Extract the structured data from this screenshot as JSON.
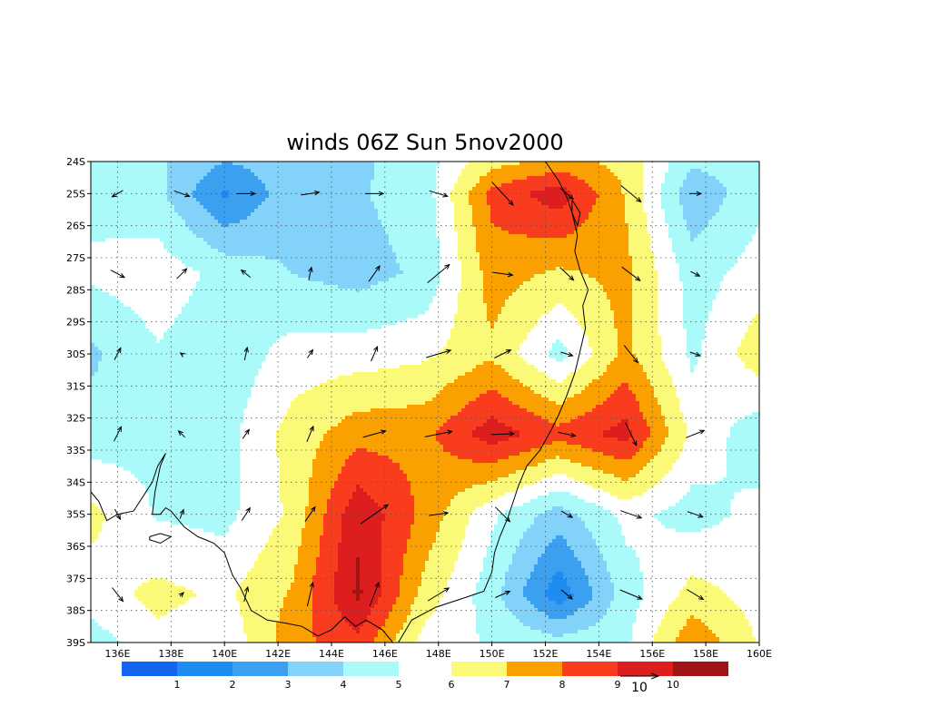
{
  "figure": {
    "title": "winds 06Z Sun 5nov2000",
    "vector_reference_label": "10"
  },
  "chart_data": {
    "type": "heatmap",
    "title": "winds 06Z Sun 5nov2000",
    "variable": "wind speed (shaded) with wind vectors",
    "x_range": [
      135,
      160
    ],
    "y_range": [
      -39,
      -24
    ],
    "grid": true,
    "x_ticks": [
      {
        "value": 136,
        "label": "136E"
      },
      {
        "value": 138,
        "label": "138E"
      },
      {
        "value": 140,
        "label": "140E"
      },
      {
        "value": 142,
        "label": "142E"
      },
      {
        "value": 144,
        "label": "144E"
      },
      {
        "value": 146,
        "label": "146E"
      },
      {
        "value": 148,
        "label": "148E"
      },
      {
        "value": 150,
        "label": "150E"
      },
      {
        "value": 152,
        "label": "152E"
      },
      {
        "value": 154,
        "label": "154E"
      },
      {
        "value": 156,
        "label": "156E"
      },
      {
        "value": 158,
        "label": "158E"
      },
      {
        "value": 160,
        "label": "160E"
      }
    ],
    "y_ticks": [
      {
        "value": -24,
        "label": "24S"
      },
      {
        "value": -25,
        "label": "25S"
      },
      {
        "value": -26,
        "label": "26S"
      },
      {
        "value": -27,
        "label": "27S"
      },
      {
        "value": -28,
        "label": "28S"
      },
      {
        "value": -29,
        "label": "29S"
      },
      {
        "value": -30,
        "label": "30S"
      },
      {
        "value": -31,
        "label": "31S"
      },
      {
        "value": -32,
        "label": "32S"
      },
      {
        "value": -33,
        "label": "33S"
      },
      {
        "value": -34,
        "label": "34S"
      },
      {
        "value": -35,
        "label": "35S"
      },
      {
        "value": -36,
        "label": "36S"
      },
      {
        "value": -37,
        "label": "37S"
      },
      {
        "value": -38,
        "label": "38S"
      },
      {
        "value": -39,
        "label": "39S"
      }
    ],
    "colorbar": {
      "levels": [
        1,
        2,
        3,
        4,
        5,
        6,
        7,
        8,
        9,
        10
      ],
      "labels": [
        "1",
        "2",
        "3",
        "4",
        "5",
        "6",
        "7",
        "8",
        "9",
        "10"
      ],
      "colors": [
        "#1464f0",
        "#1e8cf0",
        "#3ca0f0",
        "#82d2fa",
        "#aafafa",
        "#ffffff",
        "#fafa78",
        "#faa000",
        "#fa3c1e",
        "#dc1e1e",
        "#a01414"
      ]
    },
    "speed_grid": {
      "lons": [
        135,
        137.5,
        140,
        142.5,
        145,
        147.5,
        150,
        152.5,
        155,
        157.5,
        160
      ],
      "lats": [
        -24,
        -25,
        -27.5,
        -30,
        -32.5,
        -35,
        -37.5,
        -39
      ],
      "values": [
        [
          4.6,
          4.2,
          3.0,
          3.5,
          3.8,
          4.6,
          6.6,
          7.3,
          6.7,
          4.2,
          4.6
        ],
        [
          4.7,
          4.3,
          1.8,
          3.6,
          3.9,
          4.5,
          8.3,
          9.6,
          6.9,
          3.2,
          4.7
        ],
        [
          5.2,
          5.6,
          4.7,
          4.0,
          3.6,
          4.2,
          7.5,
          6.8,
          7.3,
          4.5,
          5.5
        ],
        [
          3.8,
          4.9,
          4.3,
          5.4,
          5.5,
          5.8,
          6.8,
          4.6,
          7.3,
          4.8,
          6.6
        ],
        [
          4.4,
          4.7,
          4.6,
          6.4,
          7.6,
          7.7,
          9.6,
          8.4,
          9.4,
          5.7,
          4.4
        ],
        [
          6.3,
          4.9,
          4.7,
          6.2,
          9.8,
          7.7,
          5.2,
          3.5,
          5.3,
          4.6,
          5.3
        ],
        [
          5.5,
          6.3,
          5.8,
          7.1,
          10.2,
          6.6,
          4.4,
          1.3,
          4.5,
          6.4,
          5.6
        ],
        [
          4.5,
          5.7,
          5.2,
          7.6,
          8.7,
          5.5,
          4.9,
          4.4,
          4.8,
          7.8,
          5.9
        ]
      ]
    },
    "wind_vectors": {
      "lons": [
        136,
        138.4,
        140.8,
        143.2,
        145.6,
        148,
        150.4,
        152.8,
        155.2,
        157.6
      ],
      "lats": [
        -25,
        -27.5,
        -30,
        -32.5,
        -35,
        -37.5
      ],
      "u": [
        [
          -1.2,
          1.7,
          2.0,
          2.0,
          2.0,
          2.0,
          2.3,
          1.4,
          2.2,
          1.3
        ],
        [
          1.5,
          1.1,
          -1.0,
          0.3,
          1.2,
          2.4,
          2.2,
          1.5,
          2.0,
          1.0
        ],
        [
          0.7,
          -0.3,
          0.3,
          0.6,
          0.7,
          2.7,
          1.8,
          1.3,
          1.5,
          1.1
        ],
        [
          0.8,
          -0.7,
          0.7,
          0.7,
          2.5,
          3.0,
          2.5,
          1.9,
          1.2,
          2.0
        ],
        [
          0.6,
          0.4,
          0.9,
          1.1,
          3.0,
          2.1,
          1.6,
          1.2,
          2.3,
          1.7
        ],
        [
          1.2,
          0.4,
          0.4,
          0.6,
          1.0,
          2.3,
          1.6,
          1.2,
          2.4,
          1.8
        ]
      ],
      "v": [
        [
          -0.7,
          -0.6,
          0.0,
          0.3,
          0.0,
          -0.6,
          -2.5,
          -1.2,
          -1.8,
          0.0
        ],
        [
          -0.8,
          1.1,
          0.8,
          1.4,
          1.7,
          2.0,
          -0.3,
          -1.4,
          -1.5,
          -0.5
        ],
        [
          1.3,
          0.2,
          1.4,
          0.9,
          1.6,
          0.8,
          0.9,
          -0.4,
          -1.9,
          -0.4
        ],
        [
          1.6,
          0.7,
          1.0,
          1.7,
          0.7,
          0.6,
          0.1,
          -0.4,
          -2.5,
          0.8
        ],
        [
          -1.1,
          1.0,
          1.4,
          1.6,
          2.1,
          0.3,
          -1.6,
          -0.7,
          -0.8,
          -0.6
        ],
        [
          -1.5,
          0.4,
          1.6,
          2.6,
          2.6,
          1.4,
          0.7,
          -1.0,
          -1.0,
          -1.1
        ]
      ]
    },
    "coastline": [
      [
        135.0,
        -34.3
      ],
      [
        135.3,
        -34.6
      ],
      [
        135.6,
        -35.2
      ],
      [
        136.0,
        -35.0
      ],
      [
        136.6,
        -34.9
      ],
      [
        137.3,
        -34.0
      ],
      [
        137.5,
        -33.5
      ],
      [
        137.8,
        -33.1
      ],
      [
        137.6,
        -33.5
      ],
      [
        137.4,
        -34.3
      ],
      [
        137.3,
        -35.0
      ],
      [
        137.6,
        -35.0
      ],
      [
        137.8,
        -34.8
      ],
      [
        138.0,
        -34.9
      ],
      [
        138.2,
        -35.1
      ],
      [
        138.5,
        -35.4
      ],
      [
        139.0,
        -35.7
      ],
      [
        139.3,
        -35.8
      ],
      [
        139.6,
        -35.9
      ],
      [
        140.0,
        -36.2
      ],
      [
        140.3,
        -36.9
      ],
      [
        140.6,
        -37.3
      ],
      [
        141.0,
        -38.0
      ],
      [
        141.6,
        -38.3
      ],
      [
        142.3,
        -38.4
      ],
      [
        142.9,
        -38.5
      ],
      [
        143.5,
        -38.8
      ],
      [
        144.0,
        -38.6
      ],
      [
        144.5,
        -38.2
      ],
      [
        144.9,
        -38.5
      ],
      [
        145.3,
        -38.3
      ],
      [
        145.9,
        -38.6
      ],
      [
        146.3,
        -39.0
      ]
    ],
    "coastline_east": [
      [
        146.5,
        -39.0
      ],
      [
        147.0,
        -38.3
      ],
      [
        147.9,
        -37.9
      ],
      [
        149.0,
        -37.6
      ],
      [
        149.7,
        -37.4
      ],
      [
        150.0,
        -36.8
      ],
      [
        150.1,
        -36.2
      ],
      [
        150.3,
        -35.7
      ],
      [
        150.6,
        -35.1
      ],
      [
        150.8,
        -34.6
      ],
      [
        151.0,
        -34.1
      ],
      [
        151.3,
        -33.5
      ],
      [
        151.8,
        -33.0
      ],
      [
        152.2,
        -32.4
      ],
      [
        152.5,
        -31.9
      ],
      [
        152.8,
        -31.3
      ],
      [
        153.1,
        -30.6
      ],
      [
        153.3,
        -29.9
      ],
      [
        153.5,
        -29.2
      ],
      [
        153.4,
        -28.5
      ],
      [
        153.6,
        -28.0
      ],
      [
        153.3,
        -27.4
      ],
      [
        153.1,
        -26.8
      ],
      [
        153.2,
        -26.3
      ],
      [
        153.0,
        -25.6
      ],
      [
        152.8,
        -25.1
      ],
      [
        152.5,
        -24.6
      ],
      [
        152.0,
        -24.0
      ]
    ],
    "islands": [
      [
        [
          137.2,
          -35.7
        ],
        [
          137.6,
          -35.6
        ],
        [
          138.0,
          -35.7
        ],
        [
          137.6,
          -35.9
        ],
        [
          137.2,
          -35.8
        ],
        [
          137.2,
          -35.7
        ]
      ],
      [
        [
          153.0,
          -25.2
        ],
        [
          153.3,
          -25.6
        ],
        [
          153.2,
          -26.0
        ],
        [
          153.0,
          -25.6
        ],
        [
          153.0,
          -25.2
        ]
      ]
    ]
  }
}
